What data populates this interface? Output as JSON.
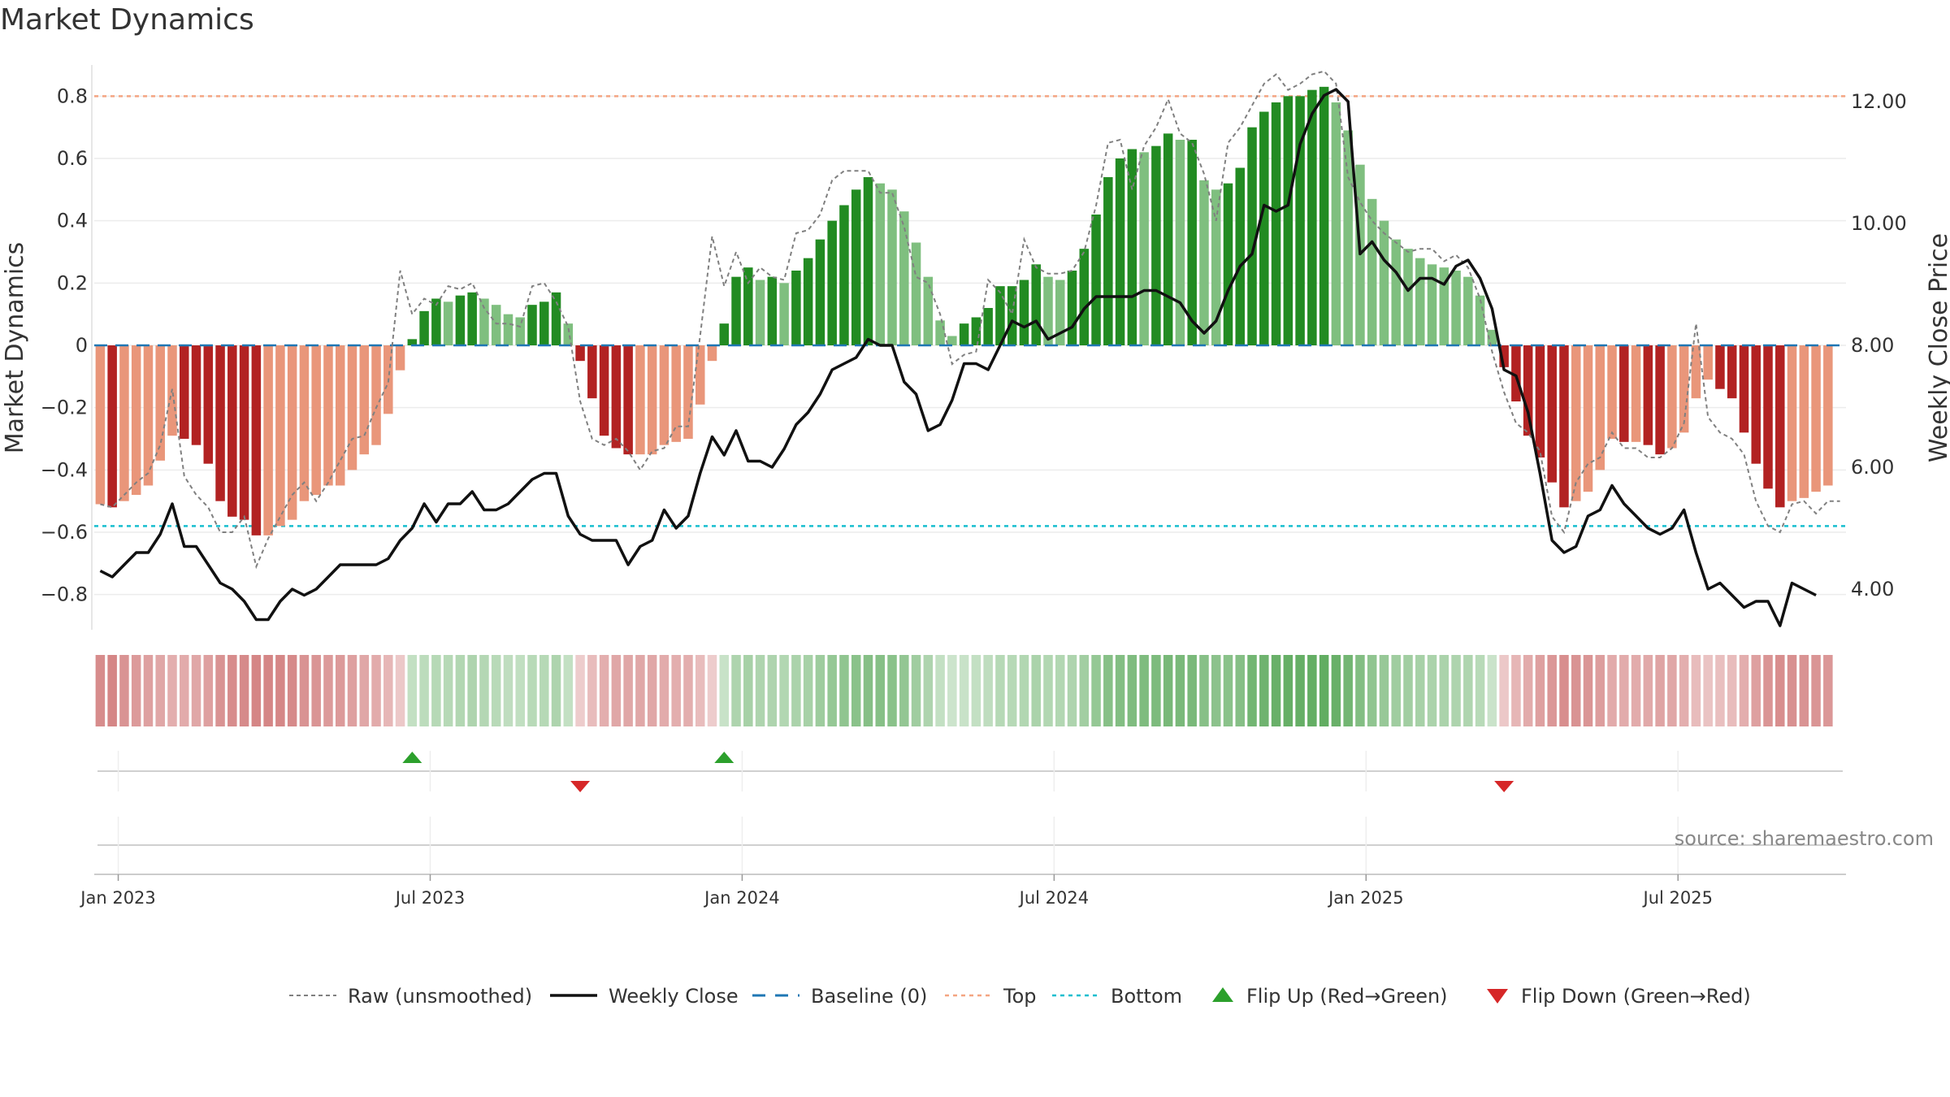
{
  "chart_data": {
    "type": "bar",
    "title": "Market Dynamics",
    "ylabel": "Market Dynamics",
    "y2label": "Weekly Close Price",
    "ylim": [
      -0.9,
      0.9
    ],
    "y2lim": [
      3.4,
      12.6
    ],
    "yticks": [
      "0.8",
      "0.6",
      "0.4",
      "0.2",
      "0",
      "−0.2",
      "−0.4",
      "−0.6",
      "−0.8"
    ],
    "y2ticks": [
      "12.00",
      "10.00",
      "8.00",
      "6.00",
      "4.00"
    ],
    "xticks": [
      "Jan 2023",
      "Jul 2023",
      "Jan 2024",
      "Jul 2024",
      "Jan 2025",
      "Jul 2025"
    ],
    "top_level": 0.8,
    "bottom_level": -0.58,
    "baseline": 0,
    "weeks": 146,
    "smoothed": [
      -0.51,
      -0.52,
      -0.5,
      -0.48,
      -0.45,
      -0.37,
      -0.29,
      -0.3,
      -0.32,
      -0.38,
      -0.5,
      -0.55,
      -0.56,
      -0.61,
      -0.61,
      -0.58,
      -0.56,
      -0.5,
      -0.48,
      -0.45,
      -0.45,
      -0.4,
      -0.35,
      -0.32,
      -0.22,
      -0.08,
      0.02,
      0.11,
      0.15,
      0.14,
      0.16,
      0.17,
      0.15,
      0.13,
      0.1,
      0.09,
      0.13,
      0.14,
      0.17,
      0.07,
      -0.05,
      -0.17,
      -0.29,
      -0.33,
      -0.35,
      -0.35,
      -0.35,
      -0.32,
      -0.31,
      -0.3,
      -0.19,
      -0.05,
      0.07,
      0.22,
      0.25,
      0.21,
      0.22,
      0.2,
      0.24,
      0.28,
      0.34,
      0.4,
      0.45,
      0.5,
      0.54,
      0.52,
      0.5,
      0.43,
      0.33,
      0.22,
      0.08,
      0.03,
      0.07,
      0.09,
      0.12,
      0.19,
      0.19,
      0.21,
      0.26,
      0.22,
      0.21,
      0.24,
      0.31,
      0.42,
      0.54,
      0.6,
      0.63,
      0.62,
      0.64,
      0.68,
      0.66,
      0.66,
      0.53,
      0.5,
      0.52,
      0.57,
      0.7,
      0.75,
      0.78,
      0.8,
      0.8,
      0.82,
      0.83,
      0.78,
      0.69,
      0.58,
      0.47,
      0.4,
      0.34,
      0.31,
      0.28,
      0.26,
      0.25,
      0.24,
      0.22,
      0.16,
      0.05,
      -0.07,
      -0.18,
      -0.29,
      -0.36,
      -0.44,
      -0.52,
      -0.5,
      -0.47,
      -0.4,
      -0.3,
      -0.31,
      -0.31,
      -0.32,
      -0.35,
      -0.33,
      -0.28,
      -0.17,
      -0.11,
      -0.14,
      -0.17,
      -0.28,
      -0.38,
      -0.46,
      -0.52,
      -0.5,
      -0.49,
      -0.47,
      -0.45
    ],
    "raw": [
      -0.51,
      -0.52,
      -0.48,
      -0.44,
      -0.41,
      -0.32,
      -0.14,
      -0.42,
      -0.48,
      -0.52,
      -0.6,
      -0.6,
      -0.55,
      -0.71,
      -0.62,
      -0.55,
      -0.48,
      -0.44,
      -0.5,
      -0.44,
      -0.37,
      -0.3,
      -0.29,
      -0.2,
      -0.12,
      0.24,
      0.1,
      0.15,
      0.13,
      0.19,
      0.18,
      0.2,
      0.12,
      0.07,
      0.07,
      0.06,
      0.19,
      0.2,
      0.14,
      0.06,
      -0.18,
      -0.3,
      -0.32,
      -0.3,
      -0.34,
      -0.4,
      -0.34,
      -0.33,
      -0.26,
      -0.26,
      0.03,
      0.35,
      0.19,
      0.3,
      0.2,
      0.25,
      0.22,
      0.21,
      0.36,
      0.37,
      0.42,
      0.53,
      0.56,
      0.56,
      0.56,
      0.49,
      0.49,
      0.38,
      0.22,
      0.2,
      0.1,
      -0.06,
      -0.03,
      -0.02,
      0.21,
      0.17,
      0.1,
      0.34,
      0.25,
      0.23,
      0.23,
      0.24,
      0.3,
      0.45,
      0.65,
      0.66,
      0.5,
      0.64,
      0.7,
      0.79,
      0.68,
      0.65,
      0.55,
      0.4,
      0.65,
      0.7,
      0.77,
      0.84,
      0.87,
      0.82,
      0.84,
      0.87,
      0.88,
      0.84,
      0.54,
      0.46,
      0.4,
      0.36,
      0.33,
      0.3,
      0.31,
      0.31,
      0.27,
      0.29,
      0.25,
      0.15,
      -0.02,
      -0.15,
      -0.25,
      -0.28,
      -0.34,
      -0.55,
      -0.6,
      -0.44,
      -0.38,
      -0.36,
      -0.28,
      -0.33,
      -0.33,
      -0.36,
      -0.36,
      -0.33,
      -0.25,
      0.07,
      -0.23,
      -0.28,
      -0.3,
      -0.35,
      -0.5,
      -0.58,
      -0.6,
      -0.51,
      -0.5,
      -0.54,
      -0.5,
      -0.5
    ],
    "close": [
      4.3,
      4.2,
      4.4,
      4.6,
      4.6,
      4.9,
      5.4,
      4.7,
      4.7,
      4.4,
      4.1,
      4.0,
      3.8,
      3.5,
      3.5,
      3.8,
      4.0,
      3.9,
      4.0,
      4.2,
      4.4,
      4.4,
      4.4,
      4.4,
      4.5,
      4.8,
      5.0,
      5.4,
      5.1,
      5.4,
      5.4,
      5.6,
      5.3,
      5.3,
      5.4,
      5.6,
      5.8,
      5.9,
      5.9,
      5.2,
      4.9,
      4.8,
      4.8,
      4.8,
      4.4,
      4.7,
      4.8,
      5.3,
      5.0,
      5.2,
      5.9,
      6.5,
      6.2,
      6.6,
      6.1,
      6.1,
      6.0,
      6.3,
      6.7,
      6.9,
      7.2,
      7.6,
      7.7,
      7.8,
      8.1,
      8.0,
      8.0,
      7.4,
      7.2,
      6.6,
      6.7,
      7.1,
      7.7,
      7.7,
      7.6,
      8.0,
      8.4,
      8.3,
      8.4,
      8.1,
      8.2,
      8.3,
      8.6,
      8.8,
      8.8,
      8.8,
      8.8,
      8.9,
      8.9,
      8.8,
      8.7,
      8.4,
      8.2,
      8.4,
      8.9,
      9.3,
      9.5,
      10.3,
      10.2,
      10.3,
      11.3,
      11.8,
      12.1,
      12.2,
      12.0,
      9.5,
      9.7,
      9.4,
      9.2,
      8.9,
      9.1,
      9.1,
      9.0,
      9.3,
      9.4,
      9.1,
      8.6,
      7.6,
      7.5,
      6.9,
      5.9,
      4.8,
      4.6,
      4.7,
      5.2,
      5.3,
      5.7,
      5.4,
      5.2,
      5.0,
      4.9,
      5.0,
      5.3,
      4.6,
      4.0,
      4.1,
      3.9,
      3.7,
      3.8,
      3.8,
      3.4,
      4.1,
      4.0,
      3.9
    ],
    "regime_strength": [
      0.55,
      0.6,
      0.5,
      0.45,
      0.4,
      0.35,
      0.3,
      0.32,
      0.35,
      0.4,
      0.5,
      0.55,
      0.56,
      0.6,
      0.6,
      0.58,
      0.56,
      0.5,
      0.48,
      0.45,
      0.45,
      0.4,
      0.35,
      0.32,
      0.25,
      0.12,
      0.15,
      0.2,
      0.25,
      0.25,
      0.28,
      0.3,
      0.26,
      0.22,
      0.18,
      0.16,
      0.22,
      0.25,
      0.3,
      0.14,
      0.08,
      0.2,
      0.3,
      0.35,
      0.36,
      0.36,
      0.36,
      0.33,
      0.31,
      0.3,
      0.2,
      0.08,
      0.12,
      0.3,
      0.35,
      0.3,
      0.3,
      0.28,
      0.32,
      0.36,
      0.42,
      0.48,
      0.52,
      0.56,
      0.6,
      0.58,
      0.56,
      0.5,
      0.4,
      0.3,
      0.15,
      0.08,
      0.12,
      0.15,
      0.18,
      0.25,
      0.25,
      0.28,
      0.32,
      0.28,
      0.28,
      0.3,
      0.38,
      0.48,
      0.58,
      0.62,
      0.64,
      0.64,
      0.66,
      0.7,
      0.68,
      0.68,
      0.58,
      0.55,
      0.56,
      0.6,
      0.72,
      0.76,
      0.8,
      0.82,
      0.82,
      0.84,
      0.85,
      0.8,
      0.72,
      0.62,
      0.52,
      0.46,
      0.4,
      0.38,
      0.35,
      0.33,
      0.32,
      0.31,
      0.29,
      0.22,
      0.1,
      0.12,
      0.25,
      0.33,
      0.4,
      0.46,
      0.53,
      0.5,
      0.48,
      0.42,
      0.33,
      0.33,
      0.33,
      0.34,
      0.37,
      0.35,
      0.3,
      0.2,
      0.14,
      0.17,
      0.2,
      0.3,
      0.4,
      0.48,
      0.54,
      0.52,
      0.5,
      0.48,
      0.46
    ],
    "flip_up_weeks": [
      26,
      52
    ],
    "flip_down_weeks": [
      40,
      117
    ],
    "colors": {
      "green_strong": "#228b22",
      "green_weak": "#7fbf7f",
      "red_strong": "#b22222",
      "red_weak": "#e9967a",
      "close": "#111111",
      "raw": "#808080",
      "baseline": "#1f77b4",
      "top": "#f4a582",
      "bottom": "#17becf",
      "flip_up": "#2ca02c",
      "flip_down": "#d62728"
    },
    "legend": [
      {
        "label": "Raw (unsmoothed)",
        "style": "dotted-gray"
      },
      {
        "label": "Weekly Close",
        "style": "solid-black"
      },
      {
        "label": "Baseline (0)",
        "style": "dashed-blue"
      },
      {
        "label": "Top",
        "style": "dotted-orange"
      },
      {
        "label": "Bottom",
        "style": "dotted-cyan"
      },
      {
        "label": "Flip Up (Red→Green)",
        "style": "triangle-up-green"
      },
      {
        "label": "Flip Down (Green→Red)",
        "style": "triangle-down-red"
      }
    ],
    "legend_position": "bottom-center",
    "source": "source: sharemaestro.com"
  }
}
